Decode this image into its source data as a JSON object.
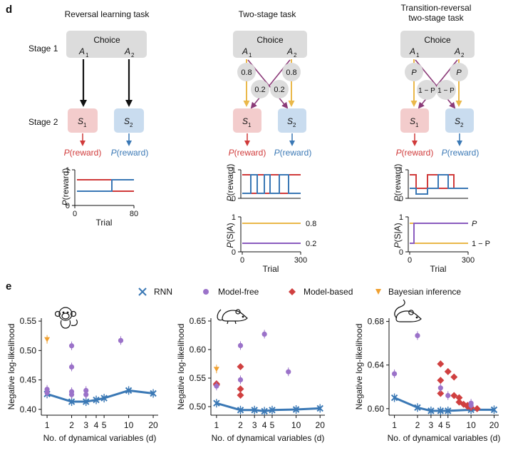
{
  "panel_d": {
    "letter": "d",
    "stage1": "Stage 1",
    "stage2": "Stage 2",
    "choice": "Choice",
    "a1": "A",
    "a2": "A",
    "s": "S",
    "sub1": "1",
    "sub2": "2",
    "reward_p": "P",
    "reward_rest": "(reward)",
    "tasks": {
      "reversal": "Reversal learning task",
      "twostage": "Two-stage task",
      "tr1": "Transition-reversal",
      "tr2": "two-stage task"
    },
    "probs": {
      "p08": "0.8",
      "p02": "0.2",
      "P": "P",
      "oneminusP": "1 − P"
    },
    "axis": {
      "preward_p": "P",
      "preward_rest": "(reward)",
      "psa_p": "P",
      "psa_rest": "(S|A)",
      "trial": "Trial",
      "t0": "0",
      "t80": "80",
      "t300": "300",
      "y0": "0",
      "y1": "1",
      "lbl08": "0.8",
      "lbl02": "0.2",
      "lblP": "P",
      "lbl1mP": "1 − P"
    }
  },
  "panel_e": {
    "letter": "e",
    "legend": {
      "rnn": "RNN",
      "model_free": "Model-free",
      "model_based": "Model-based",
      "bayes": "Bayesian inference"
    },
    "ylabel": "Negative log-likelihood",
    "xlabel": "No. of dynamical variables (d)",
    "xticks": [
      "1",
      "2",
      "3",
      "4",
      "5",
      "10",
      "20"
    ],
    "colors": {
      "rnn": "#3a78b5",
      "model_free": "#9b72c9",
      "model_based": "#d04040",
      "bayes": "#f0a030"
    }
  },
  "chart_data": [
    {
      "type": "line",
      "title": "",
      "subject": "monkey-icon",
      "xlabel": "No. of dynamical variables (d)",
      "ylabel": "Negative log-likelihood",
      "xscale": "log",
      "xlim": [
        0.85,
        23
      ],
      "ylim": [
        0.39,
        0.555
      ],
      "yticks": [
        0.4,
        0.45,
        0.5,
        0.55
      ],
      "rnn": {
        "x": [
          1,
          2,
          3,
          4,
          5,
          10,
          20
        ],
        "y": [
          0.426,
          0.413,
          0.413,
          0.416,
          0.419,
          0.432,
          0.427
        ]
      },
      "model_free": [
        [
          1,
          0.434
        ],
        [
          1,
          0.428
        ],
        [
          2,
          0.508
        ],
        [
          2,
          0.472
        ],
        [
          2,
          0.43
        ],
        [
          2,
          0.425
        ],
        [
          3,
          0.432
        ],
        [
          3,
          0.425
        ],
        [
          8,
          0.517
        ]
      ],
      "model_based": [],
      "bayes": [
        [
          1,
          0.519
        ]
      ]
    },
    {
      "type": "line",
      "title": "",
      "subject": "rat-icon",
      "xlabel": "No. of dynamical variables (d)",
      "ylabel": "Negative log-likelihood",
      "xscale": "log",
      "xlim": [
        0.85,
        23
      ],
      "ylim": [
        0.485,
        0.655
      ],
      "yticks": [
        0.5,
        0.55,
        0.6,
        0.65
      ],
      "rnn": {
        "x": [
          1,
          2,
          3,
          4,
          5,
          10,
          20
        ],
        "y": [
          0.506,
          0.494,
          0.494,
          0.492,
          0.494,
          0.495,
          0.497
        ]
      },
      "model_free": [
        [
          1,
          0.536
        ],
        [
          2,
          0.607
        ],
        [
          2,
          0.547
        ],
        [
          4,
          0.627
        ],
        [
          8,
          0.561
        ]
      ],
      "model_based": [
        [
          1,
          0.54
        ],
        [
          1,
          0.538
        ],
        [
          2,
          0.57
        ],
        [
          2,
          0.531
        ],
        [
          2,
          0.52
        ]
      ],
      "bayes": [
        [
          1,
          0.566
        ]
      ]
    },
    {
      "type": "line",
      "title": "",
      "subject": "mouse-icon",
      "xlabel": "No. of dynamical variables (d)",
      "ylabel": "Negative log-likelihood",
      "xscale": "log",
      "xlim": [
        0.85,
        23
      ],
      "ylim": [
        0.594,
        0.683
      ],
      "yticks": [
        0.6,
        0.64,
        0.68
      ],
      "rnn": {
        "x": [
          1,
          2,
          3,
          4,
          5,
          10,
          20
        ],
        "y": [
          0.61,
          0.601,
          0.598,
          0.598,
          0.598,
          0.599,
          0.599
        ]
      },
      "model_free": [
        [
          1,
          0.632
        ],
        [
          2,
          0.667
        ],
        [
          4,
          0.619
        ],
        [
          5,
          0.612
        ],
        [
          10,
          0.605
        ],
        [
          10,
          0.603
        ]
      ],
      "model_based": [
        [
          4,
          0.641
        ],
        [
          4,
          0.626
        ],
        [
          4,
          0.614
        ],
        [
          5,
          0.634
        ],
        [
          6,
          0.629
        ],
        [
          6,
          0.612
        ],
        [
          7,
          0.61
        ],
        [
          7,
          0.606
        ],
        [
          8,
          0.604
        ],
        [
          9,
          0.603
        ],
        [
          9,
          0.602
        ],
        [
          10,
          0.601
        ],
        [
          12,
          0.6
        ]
      ],
      "bayes": []
    }
  ]
}
